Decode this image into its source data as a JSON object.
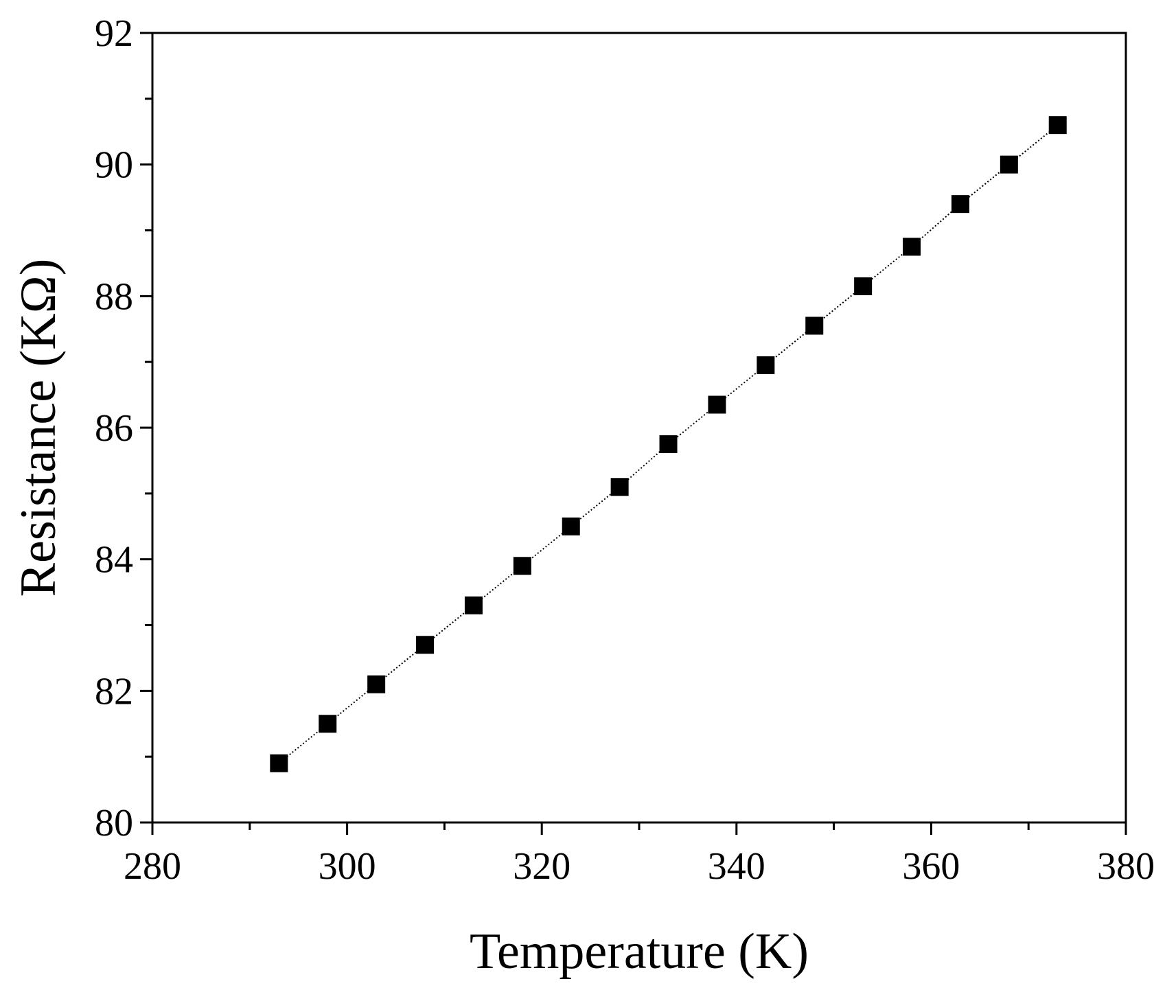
{
  "chart_data": {
    "type": "scatter",
    "title": "",
    "xlabel": "Temperature (K)",
    "ylabel": "Resistance (KΩ)",
    "xlim": [
      280,
      380
    ],
    "ylim": [
      80,
      92
    ],
    "x_ticks": [
      "280",
      "300",
      "320",
      "340",
      "360",
      "380"
    ],
    "y_ticks": [
      "80",
      "82",
      "84",
      "86",
      "88",
      "90",
      "92"
    ],
    "x_minor_step": 10,
    "y_minor_step": 1,
    "grid": false,
    "legend": "none",
    "marker": "filled-square",
    "line": "dotted",
    "color": "#000000",
    "series": [
      {
        "x": [
          293,
          298,
          303,
          308,
          313,
          318,
          323,
          328,
          333,
          338,
          343,
          348,
          353,
          358,
          363,
          368,
          373
        ],
        "y": [
          80.9,
          81.5,
          82.1,
          82.7,
          83.3,
          83.9,
          84.5,
          85.1,
          85.75,
          86.35,
          86.95,
          87.55,
          88.15,
          88.75,
          89.4,
          90.0,
          90.6
        ]
      }
    ]
  }
}
